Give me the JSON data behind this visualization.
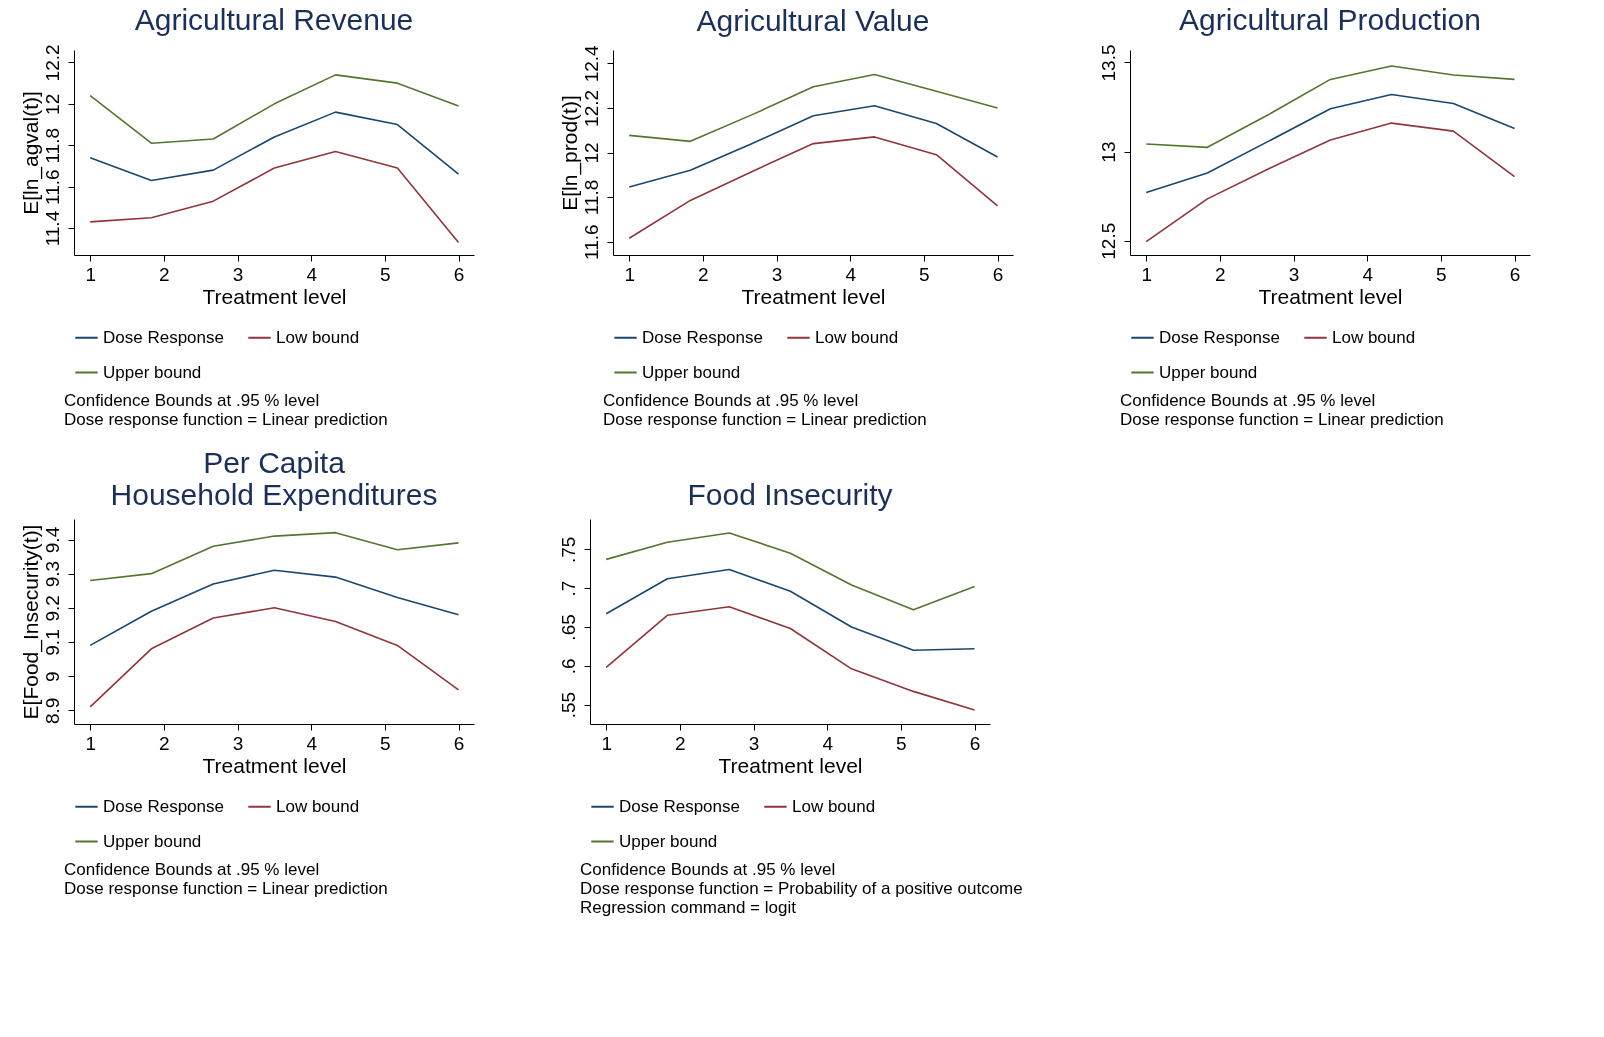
{
  "chart_data": [
    {
      "type": "line",
      "title": "Agricultural Revenue",
      "xlabel": "Treatment level",
      "ylabel": "E[ln_agval(t)]",
      "x": [
        1,
        1.83,
        2.67,
        3.5,
        4.33,
        5.17,
        6
      ],
      "xlim": [
        0.78,
        6.21
      ],
      "xticks": [
        1,
        2,
        3,
        4,
        5,
        6
      ],
      "ylim": [
        11.27,
        12.26
      ],
      "yticks": [
        11.4,
        11.6,
        11.8,
        12,
        12.2
      ],
      "grid": false,
      "legend": "bottom",
      "series": [
        {
          "name": "Dose Response",
          "color": "#1a476f",
          "values": [
            11.74,
            11.63,
            11.68,
            11.84,
            11.96,
            11.9,
            11.66
          ]
        },
        {
          "name": "Low bound",
          "color": "#90353b",
          "values": [
            11.43,
            11.45,
            11.53,
            11.69,
            11.77,
            11.69,
            11.33
          ]
        },
        {
          "name": "Upper bound",
          "color": "#55752f",
          "values": [
            12.04,
            11.81,
            11.83,
            12.0,
            12.14,
            12.1,
            11.99
          ]
        }
      ],
      "annotations": [
        "Confidence Bounds at .95 % level",
        "Dose response function = Linear prediction"
      ]
    },
    {
      "type": "line",
      "title": "Agricultural Value",
      "xlabel": "Treatment level",
      "ylabel": "E[ln_prod(t)]",
      "x": [
        1,
        1.83,
        2.67,
        3.5,
        4.33,
        5.17,
        6
      ],
      "xlim": [
        0.78,
        6.21
      ],
      "xticks": [
        1,
        2,
        3,
        4,
        5,
        6
      ],
      "ylim": [
        11.54,
        12.46
      ],
      "yticks": [
        11.6,
        11.8,
        12,
        12.2,
        12.4
      ],
      "grid": false,
      "legend": "bottom",
      "series": [
        {
          "name": "Dose Response",
          "color": "#1a476f",
          "values": [
            11.845,
            11.92,
            12.04,
            12.165,
            12.21,
            12.13,
            11.98
          ]
        },
        {
          "name": "Low bound",
          "color": "#90353b",
          "values": [
            11.615,
            11.785,
            11.915,
            12.04,
            12.07,
            11.99,
            11.76
          ]
        },
        {
          "name": "Upper bound",
          "color": "#55752f",
          "values": [
            12.077,
            12.05,
            12.17,
            12.295,
            12.35,
            12.275,
            12.2
          ]
        }
      ],
      "annotations": [
        "Confidence Bounds at .95 % level",
        "Dose response function = Linear prediction"
      ]
    },
    {
      "type": "line",
      "title": "Agricultural Production",
      "xlabel": "Treatment level",
      "x": [
        1,
        1.83,
        2.67,
        3.5,
        4.33,
        5.17,
        6
      ],
      "xlim": [
        0.78,
        6.21
      ],
      "xticks": [
        1,
        2,
        3,
        4,
        5,
        6
      ],
      "ylim": [
        12.42,
        13.57
      ],
      "yticks": [
        12.5,
        13,
        13.5
      ],
      "grid": false,
      "legend": "bottom",
      "series": [
        {
          "name": "Dose Response",
          "color": "#1a476f",
          "values": [
            12.77,
            12.88,
            13.06,
            13.24,
            13.32,
            13.27,
            13.13
          ]
        },
        {
          "name": "Low bound",
          "color": "#90353b",
          "values": [
            12.495,
            12.735,
            12.905,
            13.065,
            13.16,
            13.115,
            12.86
          ]
        },
        {
          "name": "Upper bound",
          "color": "#55752f",
          "values": [
            13.043,
            13.024,
            13.21,
            13.405,
            13.48,
            13.43,
            13.405
          ]
        }
      ],
      "annotations": [
        "Confidence Bounds at .95 % level",
        "Dose response function = Linear prediction"
      ]
    },
    {
      "type": "line",
      "title": "Per Capita\nHousehold Expenditures",
      "xlabel": "Treatment level",
      "ylabel": "E[Food_Insecurity(t)]",
      "x": [
        1,
        1.83,
        2.67,
        3.5,
        4.33,
        5.17,
        6
      ],
      "xlim": [
        0.78,
        6.21
      ],
      "xticks": [
        1,
        2,
        3,
        4,
        5,
        6
      ],
      "ylim": [
        8.86,
        9.46
      ],
      "yticks": [
        8.9,
        9,
        9.1,
        9.2,
        9.3,
        9.4
      ],
      "grid": false,
      "legend": "bottom",
      "series": [
        {
          "name": "Dose Response",
          "color": "#1a476f",
          "values": [
            9.09,
            9.19,
            9.27,
            9.31,
            9.29,
            9.23,
            9.18
          ]
        },
        {
          "name": "Low bound",
          "color": "#90353b",
          "values": [
            8.91,
            9.08,
            9.17,
            9.2,
            9.16,
            9.09,
            8.96
          ]
        },
        {
          "name": "Upper bound",
          "color": "#55752f",
          "values": [
            9.28,
            9.3,
            9.38,
            9.41,
            9.42,
            9.37,
            9.39
          ]
        }
      ],
      "annotations": [
        "Confidence Bounds at .95 % level",
        "Dose response function = Linear prediction"
      ]
    },
    {
      "type": "line",
      "title": "Food Insecurity",
      "xlabel": "Treatment level",
      "x": [
        1,
        1.83,
        2.67,
        3.5,
        4.33,
        5.17,
        6
      ],
      "xlim": [
        0.78,
        6.21
      ],
      "xticks": [
        1,
        2,
        3,
        4,
        5,
        6
      ],
      "ylim": [
        0.525,
        0.789
      ],
      "yticks": [
        {
          "value": 0.55,
          "label": ".55"
        },
        {
          "value": 0.6,
          "label": ".6"
        },
        {
          "value": 0.65,
          "label": ".65"
        },
        {
          "value": 0.7,
          "label": ".7"
        },
        {
          "value": 0.75,
          "label": ".75"
        }
      ],
      "grid": false,
      "legend": "bottom",
      "series": [
        {
          "name": "Dose Response",
          "color": "#1a476f",
          "values": [
            0.667,
            0.712,
            0.724,
            0.696,
            0.65,
            0.62,
            0.622
          ]
        },
        {
          "name": "Low bound",
          "color": "#90353b",
          "values": [
            0.598,
            0.665,
            0.676,
            0.648,
            0.596,
            0.567,
            0.543
          ]
        },
        {
          "name": "Upper bound",
          "color": "#55752f",
          "values": [
            0.737,
            0.759,
            0.771,
            0.745,
            0.704,
            0.672,
            0.702
          ]
        }
      ],
      "annotations": [
        "Confidence Bounds at .95 % level",
        "Dose response function = Probability of a positive outcome",
        "Regression command = logit"
      ]
    }
  ]
}
